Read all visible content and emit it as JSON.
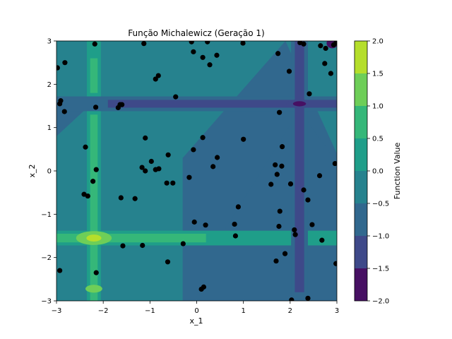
{
  "chart_data": {
    "type": "contour-scatter",
    "title": "Função Michalewicz (Geração 1)",
    "xlabel": "x_1",
    "ylabel": "x_2",
    "xlim": [
      -3,
      3
    ],
    "ylim": [
      -3,
      3
    ],
    "x_ticks": [
      -3,
      -2,
      -1,
      0,
      1,
      2,
      3
    ],
    "y_ticks": [
      -3,
      -2,
      -1,
      0,
      1,
      2,
      3
    ],
    "colorbar": {
      "label": "Function Value",
      "ticks": [
        -2.0,
        -1.5,
        -1.0,
        -0.5,
        0.0,
        0.5,
        1.0,
        1.5,
        2.0
      ],
      "levels": [
        -2.0,
        -1.5,
        -1.0,
        -0.5,
        0.0,
        0.5,
        1.0,
        1.5,
        2.0
      ],
      "colors": [
        "#471063",
        "#3e4989",
        "#31688e",
        "#26828e",
        "#1f9e89",
        "#35b779",
        "#6ece58",
        "#b5de2b"
      ]
    },
    "contour": {
      "background_color": "#26828e",
      "regions": [
        {
          "name": "upper-left-triangle",
          "level": -0.25,
          "color": "#26828e"
        },
        {
          "name": "lower-right-triangle",
          "level": -0.75,
          "color": "#31688e"
        },
        {
          "name": "vertical-band-x1-minus-2.2",
          "level": 0.25,
          "color": "#1f9e89"
        },
        {
          "name": "horizontal-band-x2-minus-1.55",
          "level": 0.25,
          "color": "#1f9e89"
        },
        {
          "name": "vertical-band-x1-2.2",
          "level": -0.75,
          "color": "#31688e"
        },
        {
          "name": "horizontal-band-x2-1.55",
          "level": -0.75,
          "color": "#31688e"
        },
        {
          "name": "peak-at-minus2.2-minus1.55",
          "level": 1.75,
          "color": "#b5de2b"
        },
        {
          "name": "trough-at-2.2-1.55",
          "level": -1.75,
          "color": "#471063"
        }
      ]
    },
    "points": [
      [
        -2.98,
        2.38
      ],
      [
        -2.82,
        2.5
      ],
      [
        -2.93,
        1.55
      ],
      [
        -2.91,
        1.62
      ],
      [
        -2.83,
        1.37
      ],
      [
        -2.18,
        2.93
      ],
      [
        -2.16,
        1.47
      ],
      [
        -2.38,
        0.55
      ],
      [
        -2.15,
        0.03
      ],
      [
        -2.22,
        -0.24
      ],
      [
        -2.41,
        -0.54
      ],
      [
        -2.33,
        -0.58
      ],
      [
        -2.15,
        -2.35
      ],
      [
        -2.93,
        -2.3
      ],
      [
        -1.68,
        1.46
      ],
      [
        -1.6,
        1.53
      ],
      [
        -1.64,
        1.53
      ],
      [
        -1.13,
        2.94
      ],
      [
        -0.88,
        2.12
      ],
      [
        -0.82,
        2.2
      ],
      [
        -0.45,
        1.71
      ],
      [
        -1.1,
        0.76
      ],
      [
        -1.17,
        0.08
      ],
      [
        -1.1,
        0.0
      ],
      [
        -0.97,
        0.22
      ],
      [
        -0.88,
        0.03
      ],
      [
        -0.81,
        0.05
      ],
      [
        -0.61,
        0.37
      ],
      [
        -0.64,
        -0.28
      ],
      [
        -0.51,
        -0.28
      ],
      [
        -0.07,
        0.49
      ],
      [
        -1.62,
        -0.62
      ],
      [
        -1.32,
        -0.64
      ],
      [
        -1.58,
        -1.73
      ],
      [
        -1.16,
        -1.72
      ],
      [
        -0.29,
        -1.68
      ],
      [
        -0.62,
        -2.1
      ],
      [
        -0.16,
        -0.15
      ],
      [
        -0.11,
        2.98
      ],
      [
        -0.07,
        2.75
      ],
      [
        0.13,
        2.62
      ],
      [
        0.23,
        2.98
      ],
      [
        0.28,
        2.45
      ],
      [
        0.43,
        2.67
      ],
      [
        0.99,
        2.95
      ],
      [
        0.13,
        0.77
      ],
      [
        1.0,
        0.73
      ],
      [
        0.44,
        0.31
      ],
      [
        0.35,
        0.1
      ],
      [
        0.15,
        -2.68
      ],
      [
        0.1,
        -2.73
      ],
      [
        0.19,
        -1.25
      ],
      [
        0.81,
        -1.23
      ],
      [
        0.83,
        -1.5
      ],
      [
        0.89,
        -0.83
      ],
      [
        -0.05,
        -1.18
      ],
      [
        1.74,
        2.71
      ],
      [
        1.98,
        2.3
      ],
      [
        1.77,
        1.35
      ],
      [
        2.41,
        1.78
      ],
      [
        2.29,
        2.93
      ],
      [
        2.21,
        2.96
      ],
      [
        2.65,
        2.89
      ],
      [
        2.74,
        2.48
      ],
      [
        2.76,
        2.83
      ],
      [
        2.87,
        2.25
      ],
      [
        2.93,
        2.91
      ],
      [
        2.98,
        2.95
      ],
      [
        1.83,
        0.56
      ],
      [
        1.68,
        0.14
      ],
      [
        1.82,
        0.11
      ],
      [
        1.72,
        -0.08
      ],
      [
        1.59,
        -0.31
      ],
      [
        2.01,
        -0.3
      ],
      [
        2.29,
        -0.44
      ],
      [
        2.63,
        -0.11
      ],
      [
        2.96,
        0.17
      ],
      [
        2.38,
        -0.67
      ],
      [
        2.47,
        -1.24
      ],
      [
        1.78,
        -0.93
      ],
      [
        1.76,
        -1.28
      ],
      [
        2.09,
        -1.36
      ],
      [
        2.11,
        -1.47
      ],
      [
        2.68,
        -1.6
      ],
      [
        1.7,
        -2.08
      ],
      [
        1.89,
        -1.91
      ],
      [
        2.03,
        -2.98
      ],
      [
        2.38,
        -2.94
      ],
      [
        2.98,
        -2.14
      ]
    ]
  }
}
